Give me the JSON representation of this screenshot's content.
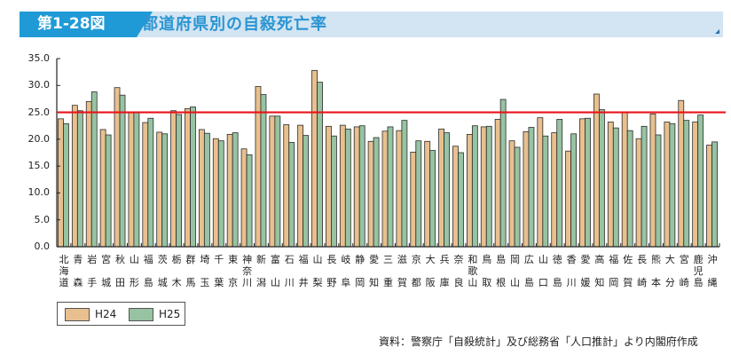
{
  "header": {
    "figure_label": "第1-28図",
    "title": "都道府県別の自殺死亡率"
  },
  "legend": {
    "items": [
      {
        "label": "H24",
        "color": "#e8c08f"
      },
      {
        "label": "H25",
        "color": "#97c3a2"
      }
    ]
  },
  "source": "資料：警察庁「自殺統計」及び総務省「人口推計」より内閣府作成",
  "colors": {
    "h24": "#e8c08f",
    "h25": "#97c3a2",
    "reference_line": "#e8141b",
    "axis": "#222222",
    "title_band": "#d3e4f2",
    "title_label_bg": "#1f9ad6",
    "title_text": "#2a95d2"
  },
  "chart_data": {
    "type": "bar",
    "title": "都道府県別の自殺死亡率",
    "xlabel": "",
    "ylabel": "",
    "ylim": [
      0,
      35
    ],
    "yticks": [
      "0.0",
      "5.0",
      "10.0",
      "15.0",
      "20.0",
      "25.0",
      "30.0",
      "35.0"
    ],
    "grid": false,
    "legend_position": "bottom-left",
    "reference_line": {
      "y": 25.0,
      "color": "#e8141b"
    },
    "categories": [
      "北海道",
      "青森",
      "岩手",
      "宮城",
      "秋田",
      "山形",
      "福島",
      "茨城",
      "栃木",
      "群馬",
      "埼玉",
      "千葉",
      "東京",
      "神奈川",
      "新潟",
      "富山",
      "石川",
      "福井",
      "山梨",
      "長野",
      "岐阜",
      "静岡",
      "愛知",
      "三重",
      "滋賀",
      "京都",
      "大阪",
      "兵庫",
      "奈良",
      "和歌山",
      "鳥取",
      "島根",
      "岡山",
      "広島",
      "山口",
      "徳島",
      "香川",
      "愛媛",
      "高知",
      "福岡",
      "佐賀",
      "長崎",
      "熊本",
      "大分",
      "宮崎",
      "鹿児島",
      "沖縄"
    ],
    "category_labels": [
      "北\n海\n道",
      "青\n\n森",
      "岩\n\n手",
      "宮\n\n城",
      "秋\n\n田",
      "山\n\n形",
      "福\n\n島",
      "茨\n\n城",
      "栃\n\n木",
      "群\n\n馬",
      "埼\n\n玉",
      "千\n\n葉",
      "東\n\n京",
      "神\n奈\n川",
      "新\n\n潟",
      "富\n\n山",
      "石\n\n川",
      "福\n\n井",
      "山\n\n梨",
      "長\n\n野",
      "岐\n\n阜",
      "静\n\n岡",
      "愛\n\n知",
      "三\n\n重",
      "滋\n\n賀",
      "京\n\n都",
      "大\n\n阪",
      "兵\n\n庫",
      "奈\n\n良",
      "和\n歌\n山",
      "鳥\n\n取",
      "島\n\n根",
      "岡\n\n山",
      "広\n\n島",
      "山\n\n口",
      "徳\n\n島",
      "香\n\n川",
      "愛\n\n媛",
      "高\n\n知",
      "福\n\n岡",
      "佐\n\n賀",
      "長\n\n崎",
      "熊\n\n本",
      "大\n\n分",
      "宮\n\n崎",
      "鹿\n児\n島",
      "沖\n\n縄"
    ],
    "series": [
      {
        "name": "H24",
        "values": [
          23.8,
          26.3,
          27.0,
          21.8,
          29.6,
          25.0,
          23.1,
          21.3,
          25.3,
          25.7,
          21.8,
          20.1,
          20.9,
          18.2,
          29.8,
          24.3,
          22.7,
          22.6,
          32.8,
          22.4,
          22.6,
          22.3,
          19.6,
          21.5,
          21.6,
          17.6,
          19.6,
          21.9,
          18.7,
          20.9,
          22.3,
          23.7,
          19.7,
          21.4,
          24.0,
          21.2,
          17.8,
          23.8,
          28.4,
          23.2,
          25.0,
          20.1,
          24.7,
          23.2,
          27.2,
          23.2,
          18.9
        ]
      },
      {
        "name": "H25",
        "values": [
          22.9,
          25.3,
          28.8,
          20.8,
          28.2,
          25.0,
          23.9,
          21.0,
          24.6,
          26.0,
          21.1,
          19.7,
          21.2,
          17.1,
          28.3,
          24.3,
          19.4,
          20.7,
          30.6,
          20.6,
          21.9,
          22.5,
          20.3,
          22.3,
          23.5,
          19.7,
          17.9,
          21.2,
          17.5,
          22.5,
          22.4,
          27.4,
          18.5,
          22.2,
          20.6,
          23.7,
          21.0,
          23.9,
          25.5,
          22.1,
          21.6,
          22.4,
          20.8,
          22.9,
          23.5,
          24.5,
          19.5
        ]
      }
    ]
  }
}
